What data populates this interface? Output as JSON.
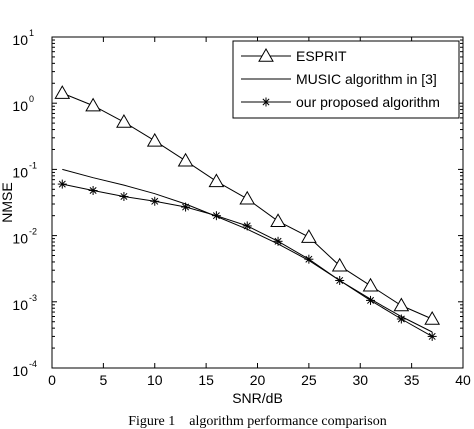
{
  "chart_data": {
    "type": "line",
    "xlabel": "SNR/dB",
    "ylabel": "NMSE",
    "xlim": [
      0,
      40
    ],
    "ylim": [
      0.0001,
      10
    ],
    "yscale": "log",
    "xticks": [
      "0",
      "5",
      "10",
      "15",
      "20",
      "25",
      "30",
      "35",
      "40"
    ],
    "yticks": [
      {
        "base": "10",
        "exp": "-4"
      },
      {
        "base": "10",
        "exp": "-3"
      },
      {
        "base": "10",
        "exp": "-2"
      },
      {
        "base": "10",
        "exp": "-1"
      },
      {
        "base": "10",
        "exp": "0"
      },
      {
        "base": "10",
        "exp": "1"
      }
    ],
    "grid": false,
    "legend_position": "top-right",
    "series": [
      {
        "name": "ESPRIT",
        "marker": "triangle",
        "x": [
          1,
          4,
          7,
          10,
          13,
          16,
          19,
          22,
          25,
          28,
          31,
          34,
          37
        ],
        "y": [
          1.42,
          0.92,
          0.52,
          0.27,
          0.135,
          0.066,
          0.036,
          0.0165,
          0.0095,
          0.0035,
          0.00175,
          0.00088,
          0.00055
        ]
      },
      {
        "name": "MUSIC algorithm in [3]",
        "marker": "none",
        "x": [
          1,
          4,
          7,
          10,
          13,
          16,
          19,
          22,
          25,
          28,
          31,
          34,
          37
        ],
        "y": [
          0.1,
          0.075,
          0.058,
          0.043,
          0.03,
          0.0195,
          0.0125,
          0.0075,
          0.0042,
          0.0021,
          0.0011,
          0.0006,
          0.00035
        ]
      },
      {
        "name": "our proposed algorithm",
        "marker": "asterisk",
        "x": [
          1,
          4,
          7,
          10,
          13,
          16,
          19,
          22,
          25,
          28,
          31,
          34,
          37
        ],
        "y": [
          0.06,
          0.048,
          0.039,
          0.033,
          0.027,
          0.02,
          0.014,
          0.0082,
          0.0044,
          0.0021,
          0.00105,
          0.00055,
          0.0003
        ]
      }
    ]
  },
  "caption": "Figure 1    algorithm performance comparison"
}
